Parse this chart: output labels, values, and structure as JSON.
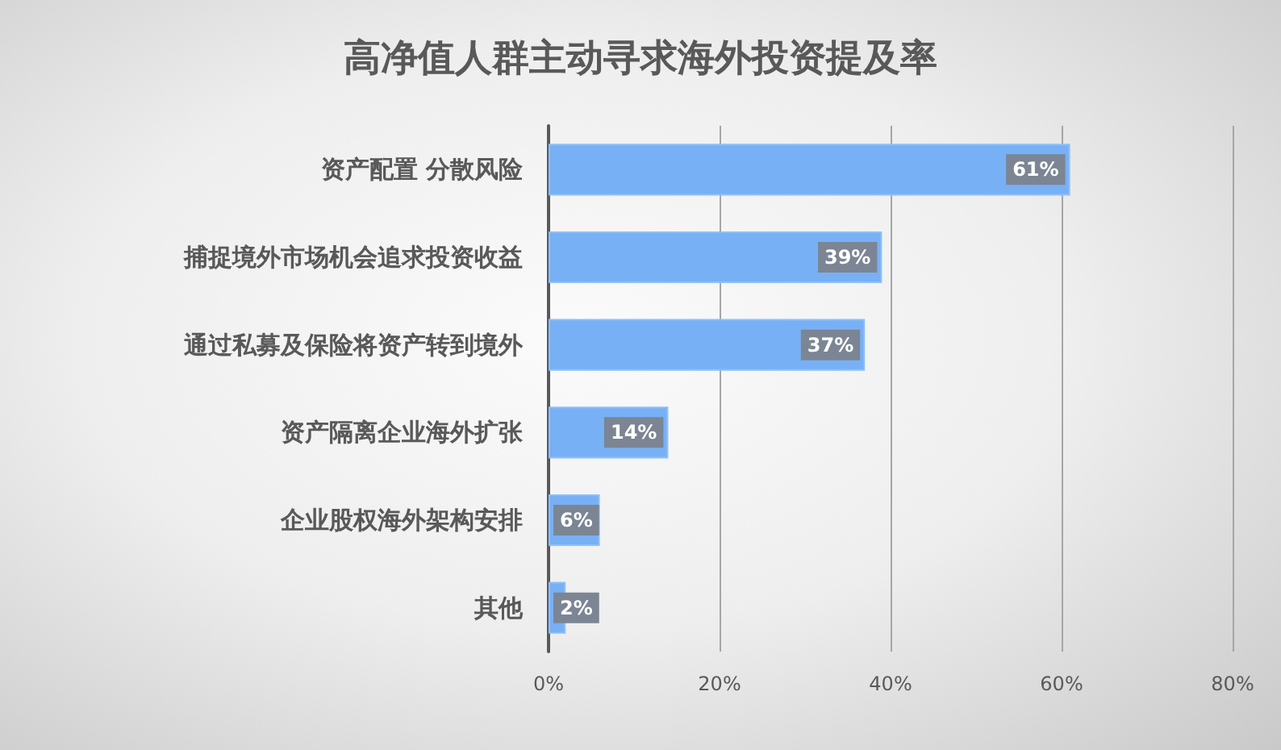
{
  "chart_data": {
    "type": "bar",
    "orientation": "horizontal",
    "title": "高净值人群主动寻求海外投资提及率",
    "categories": [
      "资产配置 分散风险",
      "捕捉境外市场机会追求投资收益",
      "通过私募及保险将资产转到境外",
      "资产隔离企业海外扩张",
      "企业股权海外架构安排",
      "其他"
    ],
    "values": [
      61,
      39,
      37,
      14,
      6,
      2
    ],
    "color": "#78b0f5",
    "value_labels": [
      "61%",
      "39%",
      "37%",
      "14%",
      "6%",
      "2%"
    ],
    "xlim": [
      0,
      80
    ],
    "xticks": [
      {
        "value": 0,
        "label": "0%"
      },
      {
        "value": 20,
        "label": "20%"
      },
      {
        "value": 40,
        "label": "40%"
      },
      {
        "value": 60,
        "label": "60%"
      },
      {
        "value": 80,
        "label": "80%"
      }
    ],
    "grid": "x"
  }
}
